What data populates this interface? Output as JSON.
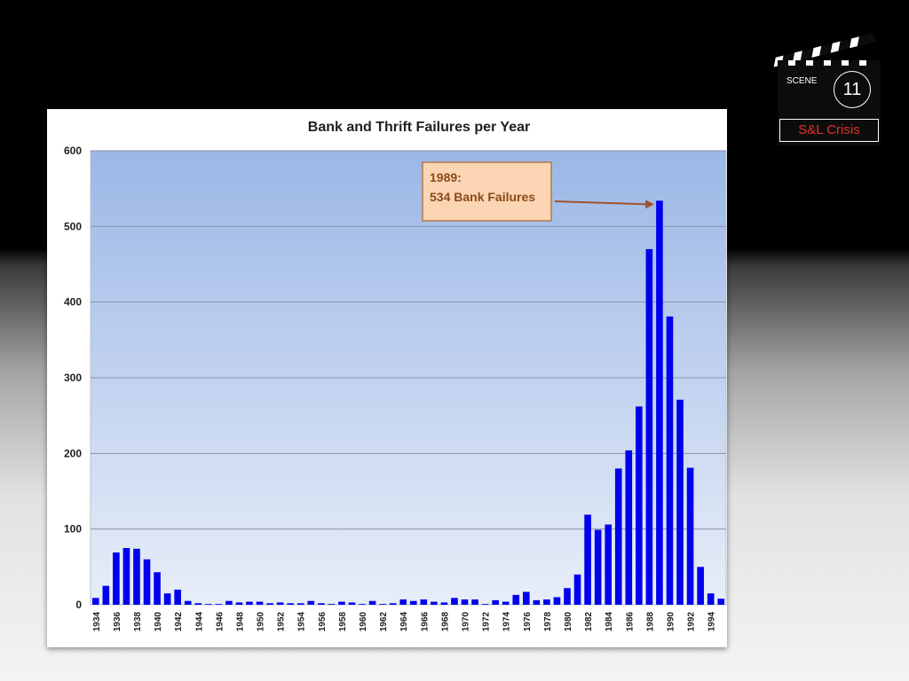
{
  "slide": {
    "scene_label": "SCENE",
    "scene_number": "11",
    "scene_title": "S&L Crisis"
  },
  "colors": {
    "bar": "#0000ee",
    "plot_bg_top": "#9bb7e6",
    "plot_bg_bottom": "#e8eef8",
    "annotation_fill": "#fbd5b3",
    "annotation_border": "#b07a4a",
    "annotation_text": "#8a4a1c",
    "scene_title": "#e5312d"
  },
  "chart_data": {
    "type": "bar",
    "title": "Bank and Thrift Failures per Year",
    "xlabel": "",
    "ylabel": "",
    "ylim": [
      0,
      600
    ],
    "yticks": [
      0,
      100,
      200,
      300,
      400,
      500,
      600
    ],
    "grid": true,
    "x": [
      1934,
      1935,
      1936,
      1937,
      1938,
      1939,
      1940,
      1941,
      1942,
      1943,
      1944,
      1945,
      1946,
      1947,
      1948,
      1949,
      1950,
      1951,
      1952,
      1953,
      1954,
      1955,
      1956,
      1957,
      1958,
      1959,
      1960,
      1961,
      1962,
      1963,
      1964,
      1965,
      1966,
      1967,
      1968,
      1969,
      1970,
      1971,
      1972,
      1973,
      1974,
      1975,
      1976,
      1977,
      1978,
      1979,
      1980,
      1981,
      1982,
      1983,
      1984,
      1985,
      1986,
      1987,
      1988,
      1989,
      1990,
      1991,
      1992,
      1993,
      1994,
      1995
    ],
    "x_tick_labels": [
      "1934",
      "1936",
      "1938",
      "1940",
      "1942",
      "1944",
      "1946",
      "1948",
      "1950",
      "1952",
      "1954",
      "1956",
      "1958",
      "1960",
      "1962",
      "1964",
      "1966",
      "1968",
      "1970",
      "1972",
      "1974",
      "1976",
      "1978",
      "1980",
      "1982",
      "1984",
      "1986",
      "1988",
      "1990",
      "1992",
      "1994"
    ],
    "series": [
      {
        "values": [
          9,
          25,
          69,
          75,
          74,
          60,
          43,
          15,
          20,
          5,
          2,
          1,
          1,
          5,
          3,
          4,
          4,
          2,
          3,
          2,
          2,
          5,
          2,
          1,
          4,
          3,
          1,
          5,
          1,
          2,
          7,
          5,
          7,
          4,
          3,
          9,
          7,
          7,
          1,
          6,
          4,
          13,
          17,
          6,
          7,
          10,
          22,
          40,
          119,
          99,
          106,
          180,
          204,
          262,
          470,
          534,
          381,
          271,
          181,
          50,
          15,
          8
        ]
      }
    ],
    "annotations": [
      {
        "line1": "1989:",
        "line2": "534 Bank Failures",
        "x": 1989,
        "y": 534
      }
    ]
  }
}
